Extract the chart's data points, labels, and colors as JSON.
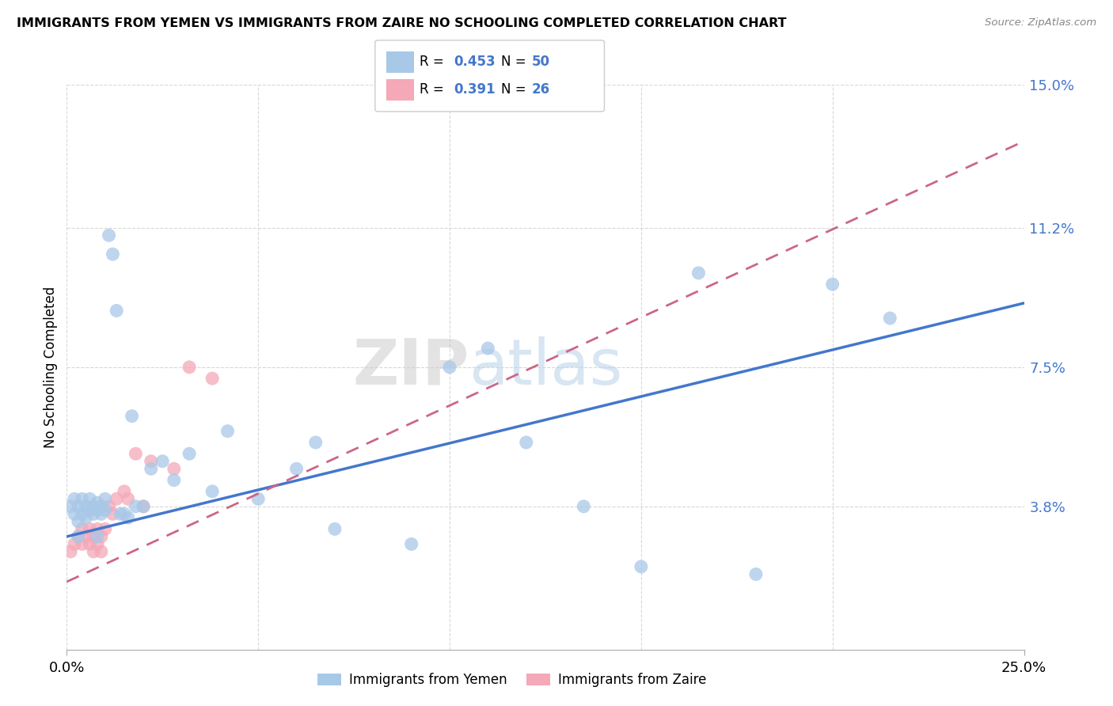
{
  "title": "IMMIGRANTS FROM YEMEN VS IMMIGRANTS FROM ZAIRE NO SCHOOLING COMPLETED CORRELATION CHART",
  "source": "Source: ZipAtlas.com",
  "ylabel": "No Schooling Completed",
  "xlim": [
    0.0,
    0.25
  ],
  "ylim": [
    0.0,
    0.15
  ],
  "ytick_labels_right": [
    "15.0%",
    "11.2%",
    "7.5%",
    "3.8%"
  ],
  "ytick_values_right": [
    0.15,
    0.112,
    0.075,
    0.038
  ],
  "color_yemen": "#a8c8e8",
  "color_zaire": "#f4a8b8",
  "line_color_yemen": "#4477cc",
  "line_color_zaire": "#cc6688",
  "background_color": "#ffffff",
  "grid_color": "#d8d8d8",
  "watermark_zip": "ZIP",
  "watermark_atlas": "atlas",
  "scatter_yemen_x": [
    0.001,
    0.002,
    0.002,
    0.003,
    0.003,
    0.004,
    0.004,
    0.005,
    0.005,
    0.006,
    0.006,
    0.007,
    0.007,
    0.008,
    0.008,
    0.009,
    0.009,
    0.01,
    0.01,
    0.011,
    0.012,
    0.013,
    0.014,
    0.015,
    0.016,
    0.017,
    0.018,
    0.02,
    0.022,
    0.025,
    0.028,
    0.032,
    0.038,
    0.042,
    0.05,
    0.06,
    0.065,
    0.07,
    0.09,
    0.1,
    0.11,
    0.12,
    0.135,
    0.15,
    0.165,
    0.18,
    0.2,
    0.215,
    0.003,
    0.008
  ],
  "scatter_yemen_y": [
    0.038,
    0.036,
    0.04,
    0.034,
    0.038,
    0.036,
    0.04,
    0.035,
    0.038,
    0.037,
    0.04,
    0.036,
    0.038,
    0.037,
    0.039,
    0.038,
    0.036,
    0.04,
    0.037,
    0.11,
    0.105,
    0.09,
    0.036,
    0.036,
    0.035,
    0.062,
    0.038,
    0.038,
    0.048,
    0.05,
    0.045,
    0.052,
    0.042,
    0.058,
    0.04,
    0.048,
    0.055,
    0.032,
    0.028,
    0.075,
    0.08,
    0.055,
    0.038,
    0.022,
    0.1,
    0.02,
    0.097,
    0.088,
    0.03,
    0.03
  ],
  "scatter_zaire_x": [
    0.001,
    0.002,
    0.003,
    0.004,
    0.004,
    0.005,
    0.006,
    0.006,
    0.007,
    0.007,
    0.008,
    0.008,
    0.009,
    0.009,
    0.01,
    0.011,
    0.012,
    0.013,
    0.015,
    0.016,
    0.018,
    0.02,
    0.022,
    0.028,
    0.032,
    0.038
  ],
  "scatter_zaire_y": [
    0.026,
    0.028,
    0.03,
    0.028,
    0.032,
    0.03,
    0.028,
    0.032,
    0.026,
    0.03,
    0.028,
    0.032,
    0.026,
    0.03,
    0.032,
    0.038,
    0.036,
    0.04,
    0.042,
    0.04,
    0.052,
    0.038,
    0.05,
    0.048,
    0.075,
    0.072
  ],
  "line_yemen_x0": 0.0,
  "line_yemen_y0": 0.03,
  "line_yemen_x1": 0.25,
  "line_yemen_y1": 0.092,
  "line_zaire_x0": 0.0,
  "line_zaire_y0": 0.018,
  "line_zaire_x1": 0.25,
  "line_zaire_y1": 0.135
}
